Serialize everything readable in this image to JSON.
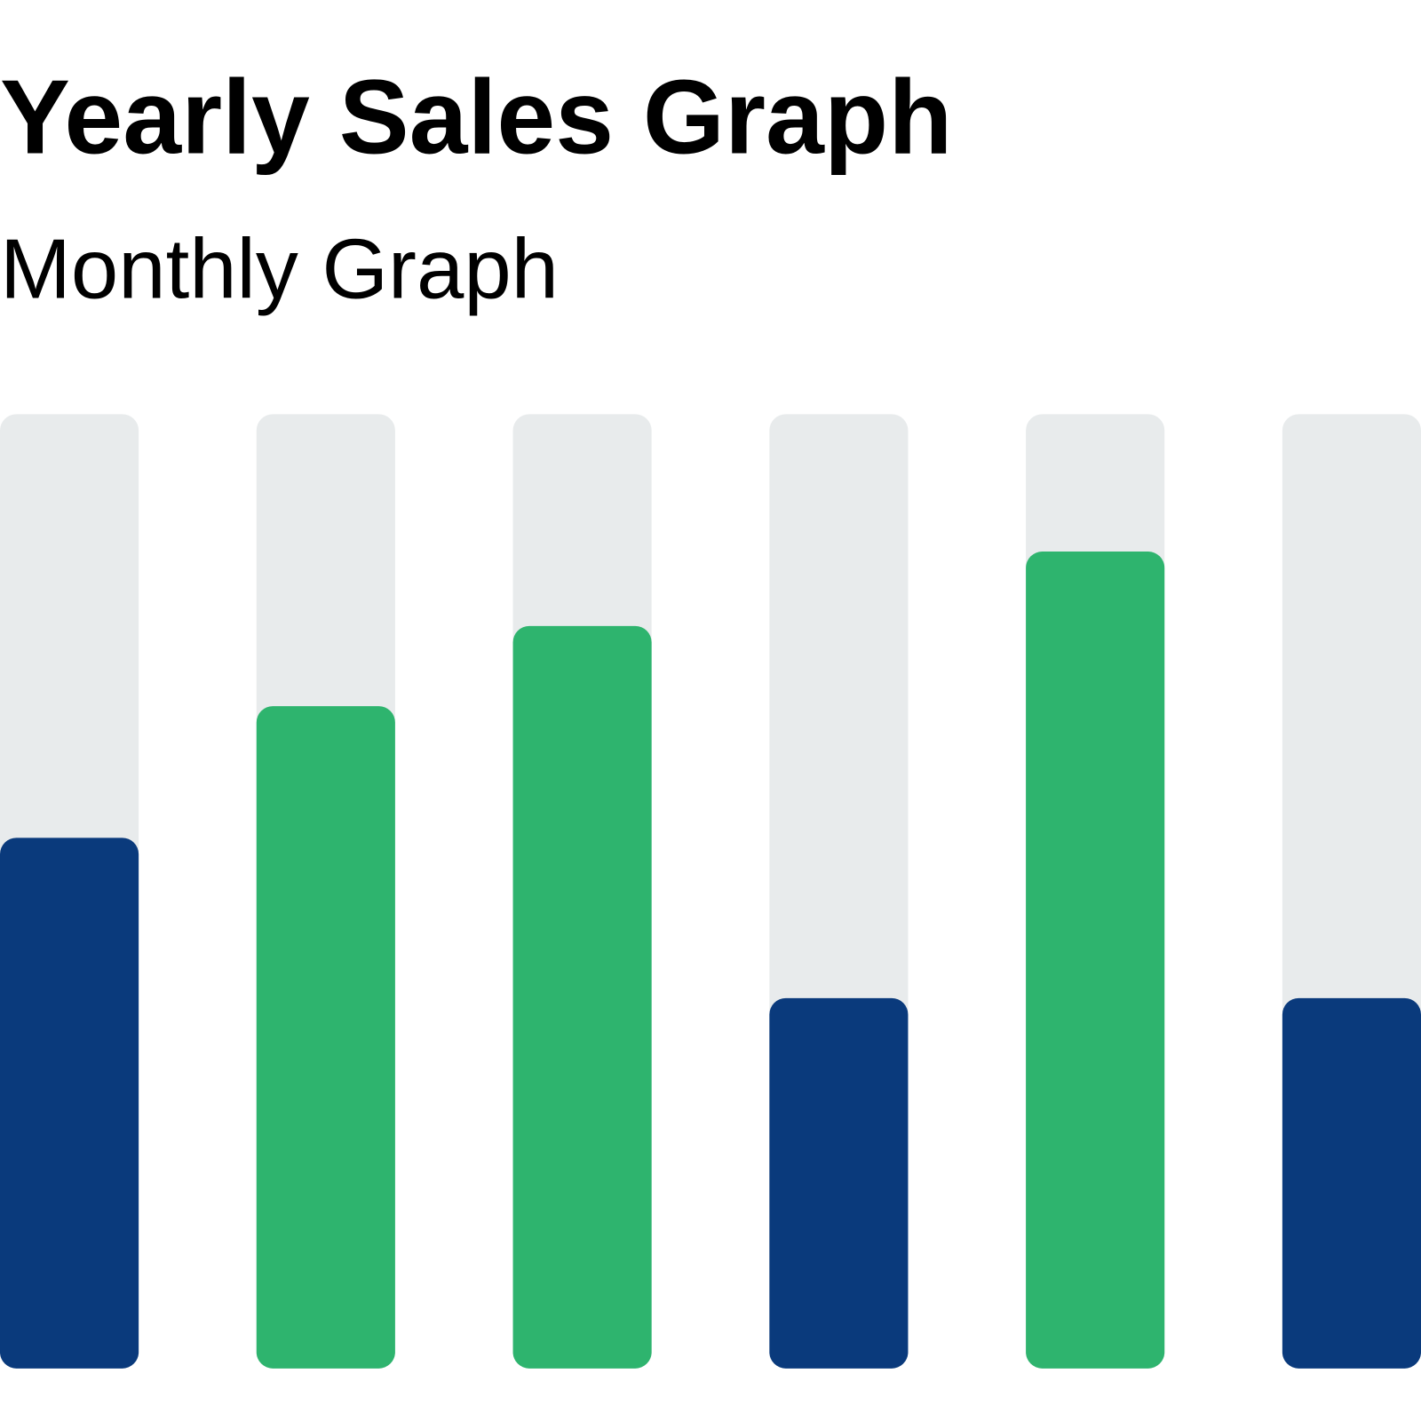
{
  "chart_data": {
    "type": "bar",
    "title": "Yearly Sales Graph",
    "subtitle": "Monthly Graph",
    "values": [
      55.6,
      69.4,
      77.8,
      38.8,
      85.6,
      38.8
    ],
    "colors": [
      "#0a3a7c",
      "#2eb46e",
      "#2eb46e",
      "#0a3a7c",
      "#2eb46e",
      "#0a3a7c"
    ],
    "track_color": "#e8ebec",
    "ylim": [
      0,
      100
    ]
  }
}
